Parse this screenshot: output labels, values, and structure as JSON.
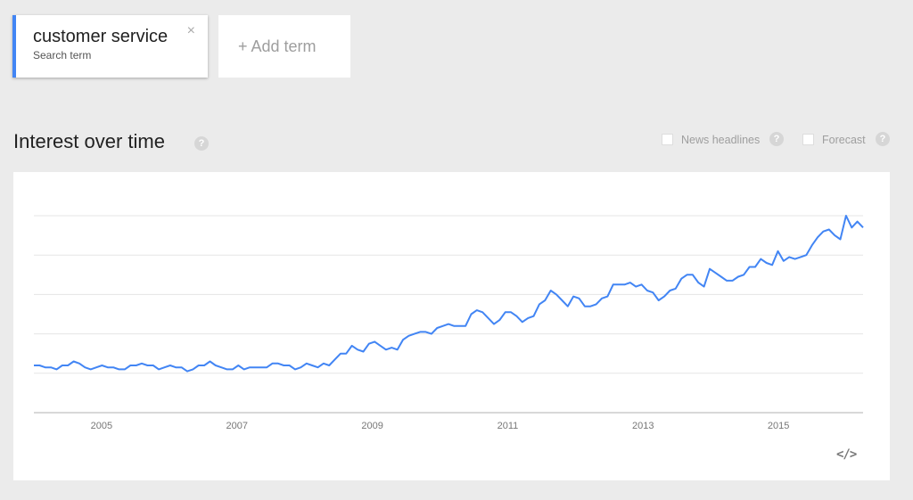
{
  "term": {
    "name": "customer service",
    "subtitle": "Search term",
    "close_glyph": "×"
  },
  "add_term": {
    "label": "+ Add term"
  },
  "section": {
    "title": "Interest over time",
    "help_glyph": "?"
  },
  "options": [
    {
      "label": "News headlines",
      "checked": false
    },
    {
      "label": "Forecast",
      "checked": false
    }
  ],
  "embed_label": "</>",
  "colors": {
    "line": "#4285f4",
    "accent": "#4285f4",
    "grid": "#e5e5e5",
    "axis": "#b0b0b0"
  },
  "chart_data": {
    "type": "line",
    "title": "",
    "xlabel": "",
    "ylabel": "",
    "x_ticks": [
      "2005",
      "2007",
      "2009",
      "2011",
      "2013",
      "2015"
    ],
    "x_tick_values": [
      2005,
      2007,
      2009,
      2011,
      2013,
      2015
    ],
    "xlim": [
      2004.0,
      2016.25
    ],
    "ylim": [
      0,
      100
    ],
    "grid": true,
    "gridlines": [
      20,
      40,
      60,
      80,
      100
    ],
    "legend": "none",
    "series": [
      {
        "values": [
          24,
          24,
          23,
          23,
          22,
          24,
          24,
          26,
          25,
          23,
          22,
          23,
          24,
          23,
          23,
          22,
          22,
          24,
          24,
          25,
          24,
          24,
          22,
          23,
          24,
          23,
          23,
          21,
          22,
          24,
          24,
          26,
          24,
          23,
          22,
          22,
          24,
          22,
          23,
          23,
          23,
          23,
          25,
          25,
          24,
          24,
          22,
          23,
          25,
          24,
          23,
          25,
          24,
          27,
          30,
          30,
          34,
          32,
          31,
          35,
          36,
          34,
          32,
          33,
          32,
          37,
          39,
          40,
          41,
          41,
          40,
          43,
          44,
          45,
          44,
          44,
          44,
          50,
          52,
          51,
          48,
          45,
          47,
          51,
          51,
          49,
          46,
          48,
          49,
          55,
          57,
          62,
          60,
          57,
          54,
          59,
          58,
          54,
          54,
          55,
          58,
          59,
          65,
          65,
          65,
          66,
          64,
          65,
          62,
          61,
          57,
          59,
          62,
          63,
          68,
          70,
          70,
          66,
          64,
          73,
          71,
          69,
          67,
          67,
          69,
          70,
          74,
          74,
          78,
          76,
          75,
          82,
          77,
          79,
          78,
          79,
          80,
          85,
          89,
          92,
          93,
          90,
          88,
          100,
          94,
          97,
          94
        ]
      }
    ]
  }
}
